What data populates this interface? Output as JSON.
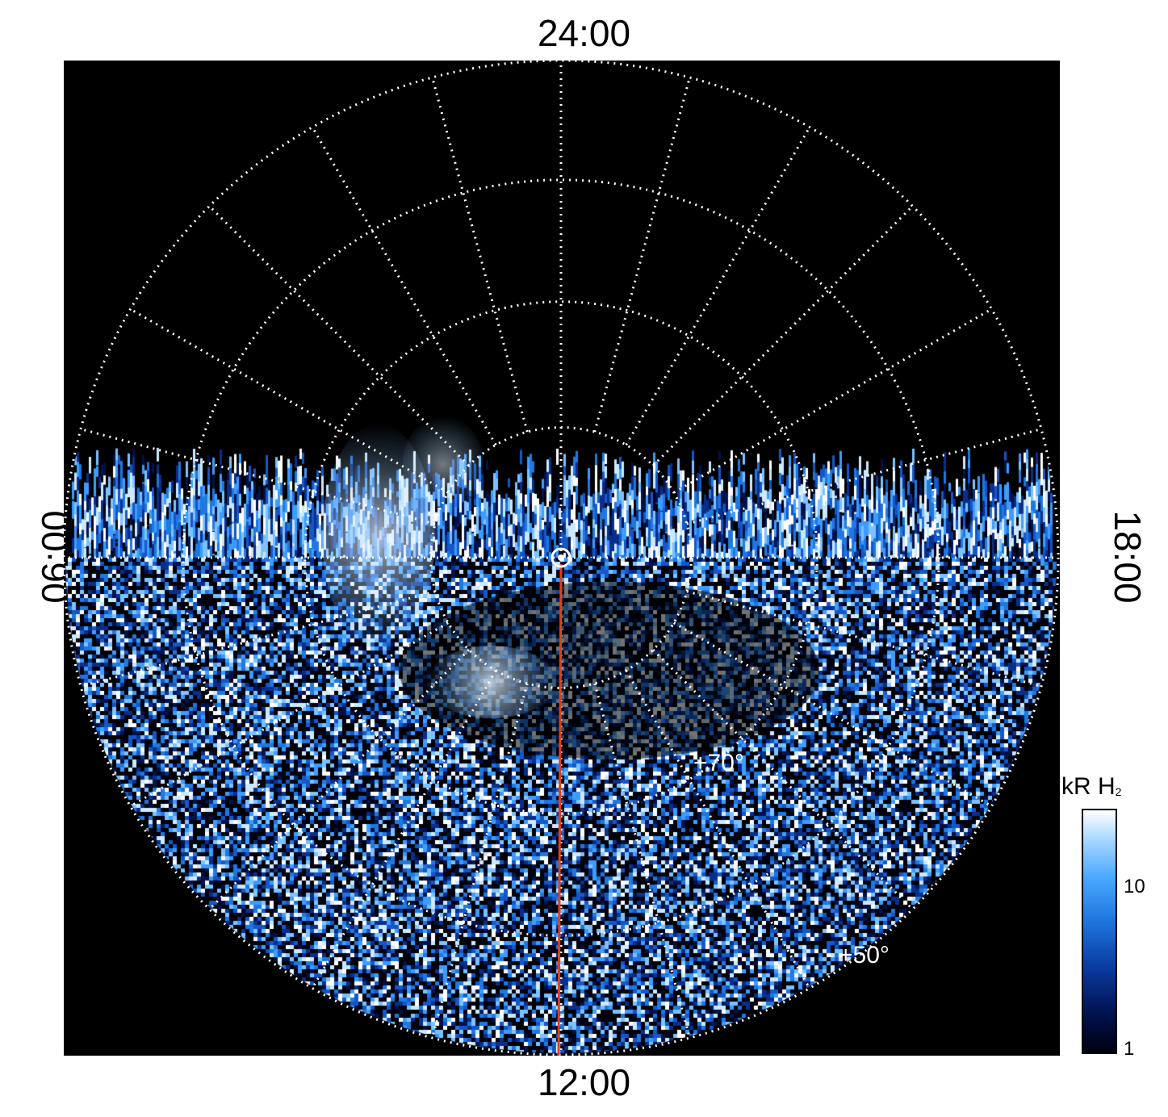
{
  "labels": {
    "top": "24:00",
    "bottom": "12:00",
    "left": "06:00",
    "right": "18:00"
  },
  "grid_labels": {
    "lat70": "+70°",
    "lat50": "+50°"
  },
  "colorbar": {
    "title_main": "kR H",
    "title_sub": "2",
    "ticks": [
      "10",
      "1"
    ],
    "range": [
      1,
      30
    ],
    "colors": [
      "#000010",
      "#00104a",
      "#1f78e0",
      "#4aa8ff",
      "#ffffff"
    ]
  },
  "colors": {
    "background": "#000000",
    "grid": "#ffffff",
    "noon_line": "#e0401a"
  }
}
